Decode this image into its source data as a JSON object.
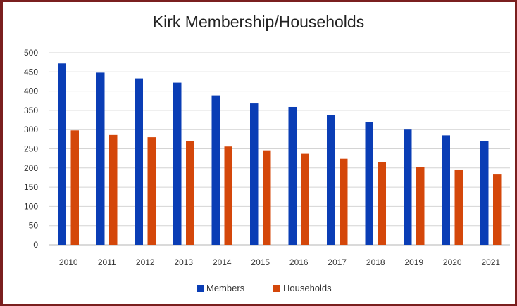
{
  "chart_data": {
    "type": "bar",
    "title": "Kirk Membership/Households",
    "categories": [
      "2010",
      "2011",
      "2012",
      "2013",
      "2014",
      "2015",
      "2016",
      "2017",
      "2018",
      "2019",
      "2020",
      "2021"
    ],
    "series": [
      {
        "name": "Members",
        "values": [
          472,
          448,
          433,
          422,
          389,
          368,
          359,
          338,
          320,
          300,
          285,
          271
        ],
        "color": "#0a3db5"
      },
      {
        "name": "Households",
        "values": [
          298,
          286,
          280,
          271,
          256,
          246,
          237,
          224,
          215,
          202,
          196,
          183
        ],
        "color": "#d4470a"
      }
    ],
    "ylim": [
      0,
      500
    ],
    "yticks": [
      "0",
      "50",
      "100",
      "150",
      "200",
      "250",
      "300",
      "350",
      "400",
      "450",
      "500"
    ],
    "grid": true,
    "legend": "bottom"
  }
}
